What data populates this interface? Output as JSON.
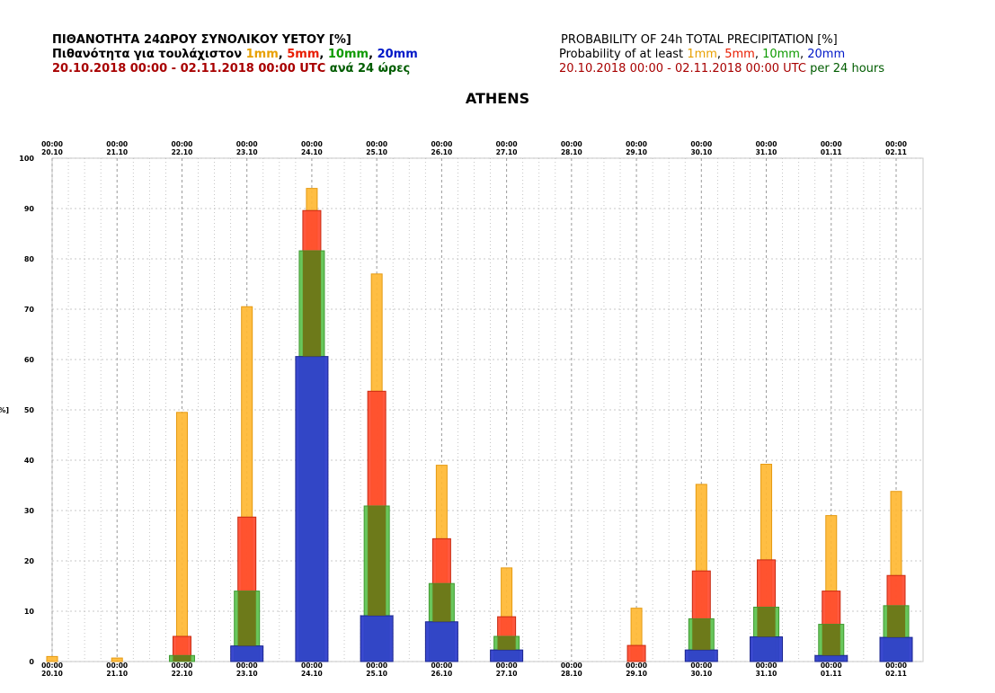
{
  "header": {
    "greek": {
      "title": "ΠΙΘΑΝΟΤΗΤΑ 24ΩΡΟΥ ΣΥΝΟΛΙΚΟΥ ΥΕΤΟΥ [%]",
      "subtitle_prefix": "Πιθανότητα για τουλάχιστον",
      "period": "20.10.2018 00:00 - 02.11.2018 00:00 UTC",
      "period_suffix": "ανά 24 ώρες"
    },
    "english": {
      "title": "PROBABILITY OF 24h TOTAL PRECIPITATION [%]",
      "subtitle_prefix": "Probability of at least",
      "period": "20.10.2018 00:00 - 02.11.2018 00:00 UTC",
      "period_suffix": "per 24 hours"
    },
    "thresholds": [
      "1mm",
      "5mm",
      "10mm",
      "20mm"
    ],
    "separator": ","
  },
  "city": "ATHENS",
  "colors": {
    "1mm": "#ffb833",
    "5mm": "#ff4a2e",
    "10mm": "#5cc24e",
    "20mm": "#2f3fcc",
    "overlap_5_10": "#6f6f12",
    "overlap_1_5": "#b7311d",
    "grid": "#b8b8b8",
    "title_orange": "#e8a000",
    "title_red": "#e81c00",
    "title_green": "#0e9a00",
    "title_blue": "#0018c8",
    "title_darkred": "#a80000",
    "title_darkgreen": "#005c00"
  },
  "chart_data": {
    "type": "bar",
    "title": "ATHENS",
    "ylabel": "[%]",
    "ylim": [
      0,
      100
    ],
    "yticks": [
      0,
      10,
      20,
      30,
      40,
      50,
      60,
      70,
      80,
      90,
      100
    ],
    "grid": true,
    "categories": [
      {
        "time": "00:00",
        "date": "20.10"
      },
      {
        "time": "00:00",
        "date": "21.10"
      },
      {
        "time": "00:00",
        "date": "22.10"
      },
      {
        "time": "00:00",
        "date": "23.10"
      },
      {
        "time": "00:00",
        "date": "24.10"
      },
      {
        "time": "00:00",
        "date": "25.10"
      },
      {
        "time": "00:00",
        "date": "26.10"
      },
      {
        "time": "00:00",
        "date": "27.10"
      },
      {
        "time": "00:00",
        "date": "28.10"
      },
      {
        "time": "00:00",
        "date": "29.10"
      },
      {
        "time": "00:00",
        "date": "30.10"
      },
      {
        "time": "00:00",
        "date": "31.10"
      },
      {
        "time": "00:00",
        "date": "01.11"
      },
      {
        "time": "00:00",
        "date": "02.11"
      }
    ],
    "series": [
      {
        "name": "1mm",
        "values": [
          1,
          0.7,
          49.5,
          70.5,
          94,
          77,
          39,
          18.6,
          0,
          10.6,
          35.2,
          39.2,
          29,
          33.8
        ]
      },
      {
        "name": "5mm",
        "values": [
          0,
          0,
          5,
          28.7,
          89.6,
          53.7,
          24.4,
          8.9,
          0,
          3.2,
          18,
          20.2,
          14,
          17.1
        ]
      },
      {
        "name": "10mm",
        "values": [
          0,
          0,
          1.2,
          14,
          81.6,
          30.9,
          15.5,
          5,
          0,
          0,
          8.5,
          10.8,
          7.4,
          11.1
        ]
      },
      {
        "name": "20mm",
        "values": [
          0,
          0,
          0,
          3.1,
          60.6,
          9.1,
          7.9,
          2.3,
          0,
          0,
          2.3,
          4.9,
          1.2,
          4.8
        ]
      }
    ]
  }
}
